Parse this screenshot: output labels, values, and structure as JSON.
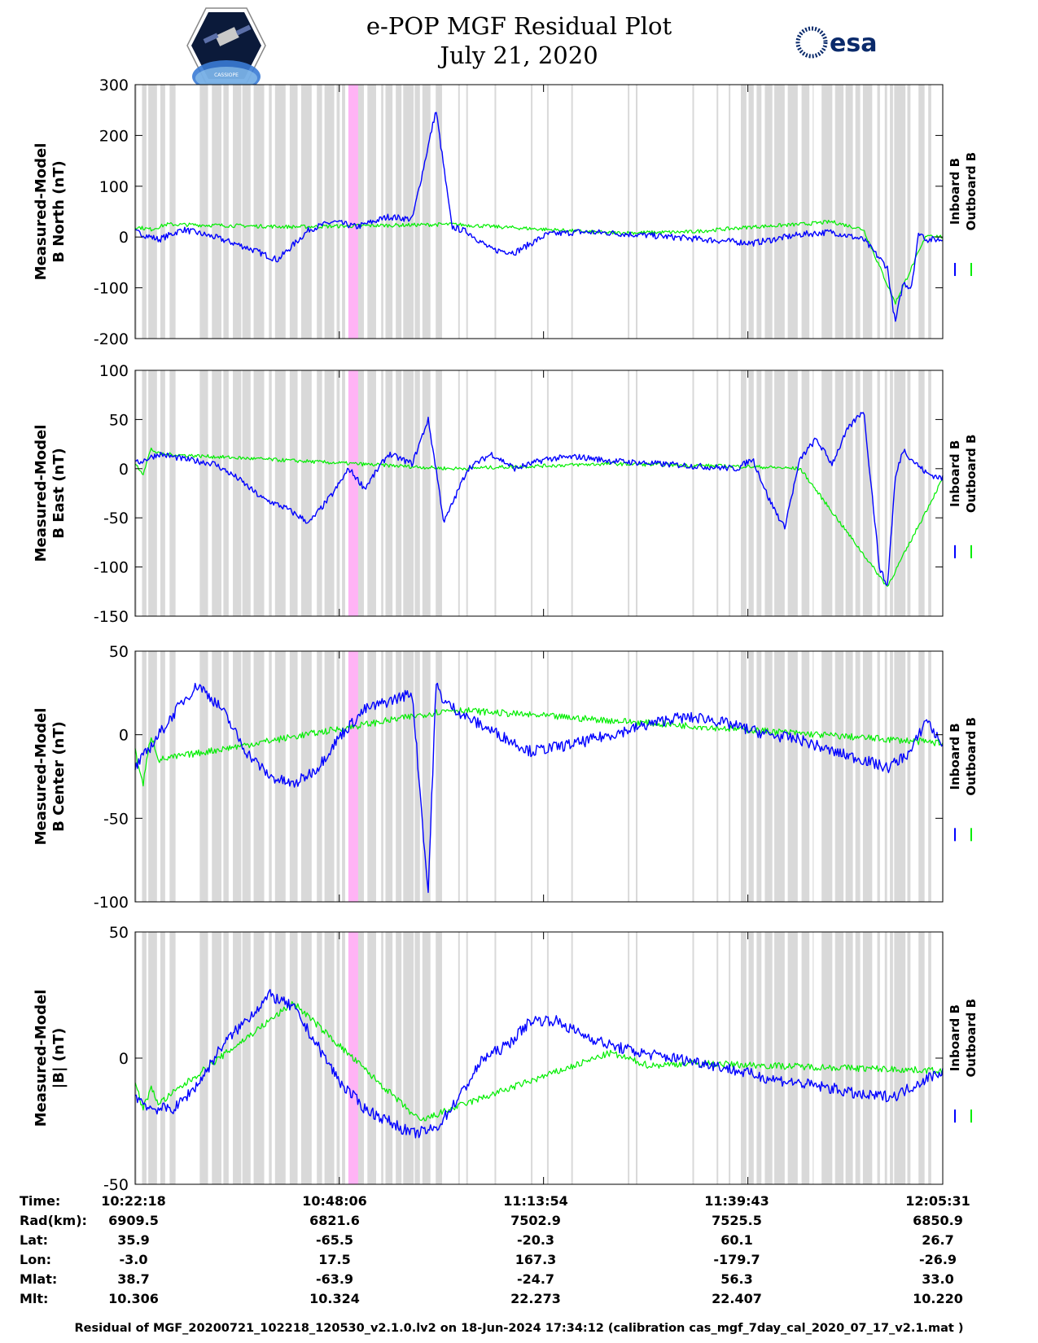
{
  "title": {
    "line1": "e-POP MGF Residual Plot",
    "line2": "July 21, 2020"
  },
  "logos": {
    "left": {
      "icon": "cassiope-mission-patch-icon",
      "caption": "CASSIOPE"
    },
    "right": {
      "icon": "esa-logo-icon",
      "text": "esa"
    }
  },
  "colors": {
    "inboard": "#0000ff",
    "outboard": "#00ee00",
    "gap_shading": "#d9d9d9",
    "highlight": "#ffb3f5",
    "axis": "#000000"
  },
  "legend": {
    "inboard": "Inboard B",
    "outboard": "Outboard B"
  },
  "chart_data": [
    {
      "type": "line",
      "title": "",
      "xlabel": "Time",
      "ylabel_line1": "Measured-Model",
      "ylabel_line2": "B North (nT)",
      "ylim": [
        -200,
        300
      ],
      "yticks": [
        300,
        200,
        100,
        0,
        -100,
        -200
      ],
      "x_range_minutes": [
        0,
        102
      ],
      "series": [
        {
          "name": "Inboard B",
          "color": "#0000ff",
          "x": [
            0,
            3,
            6,
            10,
            14,
            18,
            22,
            25,
            28,
            32,
            35,
            38,
            40,
            42,
            45,
            48,
            52,
            56,
            60,
            66,
            72,
            78,
            84,
            88,
            92,
            95,
            96,
            97,
            98,
            99,
            100,
            102
          ],
          "y": [
            10,
            -5,
            15,
            0,
            -20,
            -45,
            15,
            30,
            20,
            40,
            35,
            250,
            20,
            10,
            -25,
            -30,
            5,
            10,
            8,
            2,
            -5,
            -12,
            5,
            10,
            -5,
            -60,
            -170,
            -90,
            -100,
            10,
            -5,
            -5
          ]
        },
        {
          "name": "Outboard B",
          "color": "#00ee00",
          "x": [
            0,
            2,
            4,
            20,
            40,
            60,
            70,
            78,
            84,
            88,
            92,
            96,
            100,
            102
          ],
          "y": [
            20,
            15,
            25,
            20,
            25,
            8,
            10,
            20,
            25,
            30,
            15,
            -130,
            5,
            0
          ]
        }
      ]
    },
    {
      "type": "line",
      "title": "",
      "xlabel": "Time",
      "ylabel_line1": "Measured-Model",
      "ylabel_line2": "B East (nT)",
      "ylim": [
        -150,
        100
      ],
      "yticks": [
        100,
        50,
        0,
        -50,
        -100,
        -150
      ],
      "x_range_minutes": [
        0,
        102
      ],
      "series": [
        {
          "name": "Inboard B",
          "color": "#0000ff",
          "x": [
            0,
            3,
            6,
            10,
            13,
            16,
            19,
            22,
            25,
            27,
            29,
            32,
            35,
            37,
            38,
            39,
            42,
            45,
            48,
            52,
            56,
            60,
            66,
            72,
            76,
            78,
            80,
            82,
            84,
            86,
            88,
            90,
            92,
            94,
            95,
            96,
            97,
            98,
            100,
            102
          ],
          "y": [
            5,
            15,
            10,
            5,
            -10,
            -30,
            -40,
            -55,
            -25,
            0,
            -20,
            15,
            5,
            50,
            0,
            -55,
            0,
            15,
            0,
            10,
            12,
            8,
            5,
            2,
            0,
            10,
            -30,
            -60,
            10,
            30,
            5,
            40,
            60,
            -100,
            -120,
            -10,
            20,
            10,
            -5,
            -10
          ]
        },
        {
          "name": "Outboard B",
          "color": "#00ee00",
          "x": [
            0,
            1,
            2,
            3,
            40,
            60,
            78,
            84,
            95,
            102
          ],
          "y": [
            5,
            -5,
            20,
            15,
            0,
            5,
            2,
            0,
            -120,
            -10
          ]
        }
      ]
    },
    {
      "type": "line",
      "title": "",
      "xlabel": "Time",
      "ylabel_line1": "Measured-Model",
      "ylabel_line2": "B Center (nT)",
      "ylim": [
        -100,
        50
      ],
      "yticks": [
        50,
        0,
        -50,
        -100
      ],
      "x_range_minutes": [
        0,
        102
      ],
      "series": [
        {
          "name": "Inboard B",
          "color": "#0000ff",
          "x": [
            0,
            3,
            6,
            8,
            11,
            14,
            17,
            20,
            23,
            26,
            29,
            32,
            35,
            37,
            38,
            39,
            42,
            46,
            50,
            56,
            60,
            64,
            68,
            72,
            76,
            80,
            84,
            88,
            92,
            95,
            98,
            100,
            101,
            102
          ],
          "y": [
            -20,
            0,
            20,
            30,
            15,
            -10,
            -25,
            -30,
            -20,
            0,
            15,
            20,
            25,
            -95,
            30,
            20,
            10,
            0,
            -10,
            -5,
            0,
            5,
            10,
            10,
            5,
            0,
            -3,
            -10,
            -15,
            -20,
            -10,
            10,
            0,
            -5
          ]
        },
        {
          "name": "Outboard B",
          "color": "#00ee00",
          "x": [
            0,
            1,
            2,
            3,
            40,
            102
          ],
          "y": [
            -10,
            -30,
            0,
            -15,
            15,
            -5
          ]
        }
      ]
    },
    {
      "type": "line",
      "title": "",
      "xlabel": "Time",
      "ylabel_line1": "Measured-Model",
      "ylabel_line2": "|B| (nT)",
      "ylim": [
        -50,
        50
      ],
      "yticks": [
        50,
        0,
        -50
      ],
      "x_range_minutes": [
        0,
        102
      ],
      "series": [
        {
          "name": "Inboard B",
          "color": "#0000ff",
          "x": [
            0,
            2,
            5,
            8,
            11,
            14,
            17,
            20,
            23,
            26,
            29,
            32,
            35,
            38,
            41,
            44,
            47,
            50,
            53,
            56,
            60,
            64,
            68,
            72,
            76,
            80,
            84,
            88,
            92,
            96,
            100,
            102
          ],
          "y": [
            -15,
            -20,
            -20,
            -10,
            5,
            15,
            25,
            20,
            5,
            -10,
            -20,
            -25,
            -30,
            -28,
            -15,
            0,
            5,
            15,
            15,
            10,
            5,
            2,
            0,
            -2,
            -5,
            -8,
            -10,
            -12,
            -15,
            -15,
            -8,
            -5
          ]
        },
        {
          "name": "Outboard B",
          "color": "#00ee00",
          "x": [
            0,
            1,
            2,
            3,
            20,
            36,
            40,
            60,
            65,
            70,
            102
          ],
          "y": [
            -10,
            -20,
            -12,
            -18,
            22,
            -25,
            -20,
            2,
            -3,
            -2,
            -5
          ]
        }
      ]
    }
  ],
  "time_axis": {
    "ticks": [
      "10:22:18",
      "10:48:06",
      "11:13:54",
      "11:39:43",
      "12:05:31"
    ]
  },
  "ephemeris": [
    {
      "label": "Time:",
      "values": [
        "10:22:18",
        "10:48:06",
        "11:13:54",
        "11:39:43",
        "12:05:31"
      ]
    },
    {
      "label": "Rad(km):",
      "values": [
        "6909.5",
        "6821.6",
        "7502.9",
        "7525.5",
        "6850.9"
      ]
    },
    {
      "label": "Lat:",
      "values": [
        "35.9",
        "-65.5",
        "-20.3",
        "60.1",
        "26.7"
      ]
    },
    {
      "label": "Lon:",
      "values": [
        "-3.0",
        "17.5",
        "167.3",
        "-179.7",
        "-26.9"
      ]
    },
    {
      "label": "Mlat:",
      "values": [
        "38.7",
        "-63.9",
        "-24.7",
        "56.3",
        "33.0"
      ]
    },
    {
      "label": "Mlt:",
      "values": [
        "10.306",
        "10.324",
        "22.273",
        "22.407",
        "10.220"
      ]
    }
  ],
  "footer": "Residual of MGF_20200721_102218_120530_v2.1.0.lv2 on 18-Jun-2024 17:34:12 (calibration cas_mgf_7day_cal_2020_07_17_v2.1.mat )"
}
